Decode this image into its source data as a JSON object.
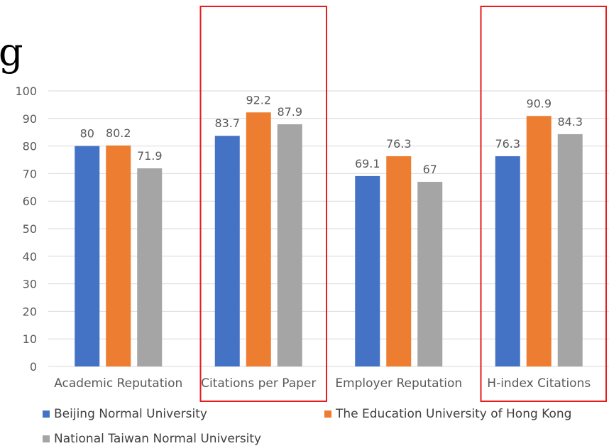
{
  "title_fragment": "g",
  "chart_data": {
    "type": "bar",
    "categories": [
      "Academic Reputation",
      "Citations per Paper",
      "Employer Reputation",
      "H-index Citations"
    ],
    "series": [
      {
        "name": "Beijing Normal University",
        "values": [
          80,
          83.7,
          69.1,
          76.3
        ],
        "color": "#4472C4"
      },
      {
        "name": "The Education University of Hong Kong",
        "values": [
          80.2,
          92.2,
          76.3,
          90.9
        ],
        "color": "#ED7D31"
      },
      {
        "name": "National Taiwan Normal University",
        "values": [
          71.9,
          87.9,
          67,
          84.3
        ],
        "color": "#A5A5A5"
      }
    ],
    "data_labels": [
      [
        "80",
        "83.7",
        "69.1",
        "76.3"
      ],
      [
        "80.2",
        "92.2",
        "76.3",
        "90.9"
      ],
      [
        "71.9",
        "87.9",
        "67",
        "84.3"
      ]
    ],
    "ylim": [
      0,
      100
    ],
    "yticks": [
      0,
      10,
      20,
      30,
      40,
      50,
      60,
      70,
      80,
      90,
      100
    ],
    "grid": true,
    "legend_position": "bottom",
    "highlighted_categories": [
      "Citations per Paper",
      "H-index Citations"
    ],
    "highlight_color": "#E81C1C",
    "gridline_color": "#D9D9D9"
  }
}
